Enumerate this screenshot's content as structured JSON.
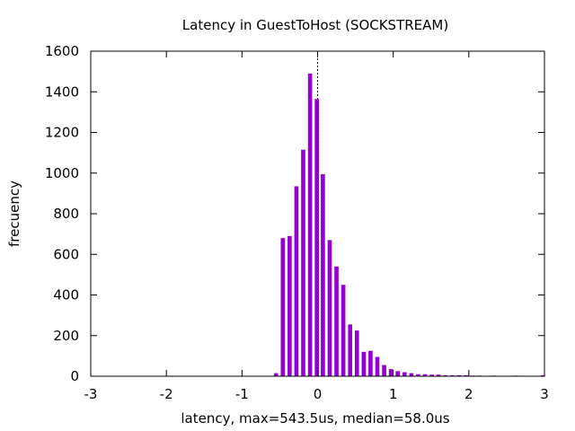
{
  "chart_data": {
    "type": "bar",
    "title": "Latency in GuestToHost (SOCKSTREAM)",
    "xlabel": "latency, max=543.5us, median=58.0us",
    "ylabel": "frecuency",
    "xlim": [
      -3,
      3
    ],
    "ylim": [
      0,
      1600
    ],
    "xticks": [
      -3,
      -2,
      -1,
      0,
      1,
      2,
      3
    ],
    "yticks": [
      0,
      200,
      400,
      600,
      800,
      1000,
      1200,
      1400,
      1600
    ],
    "bar_width": 0.055,
    "bar_color": "#9400d3",
    "median_line_x": 0,
    "grid": false,
    "x": [
      -0.55,
      -0.46,
      -0.37,
      -0.28,
      -0.19,
      -0.1,
      -0.01,
      0.07,
      0.16,
      0.25,
      0.34,
      0.43,
      0.52,
      0.61,
      0.7,
      0.79,
      0.88,
      0.97,
      1.06,
      1.15,
      1.24,
      1.33,
      1.42,
      1.51,
      1.6,
      1.69,
      1.78,
      1.87,
      1.96,
      2.05,
      2.14,
      2.33,
      2.62,
      2.98
    ],
    "values": [
      15,
      680,
      690,
      935,
      1115,
      1490,
      1365,
      995,
      670,
      540,
      450,
      255,
      225,
      120,
      125,
      95,
      55,
      35,
      25,
      20,
      15,
      10,
      10,
      8,
      8,
      5,
      5,
      5,
      5,
      3,
      3,
      3,
      3,
      5
    ]
  }
}
